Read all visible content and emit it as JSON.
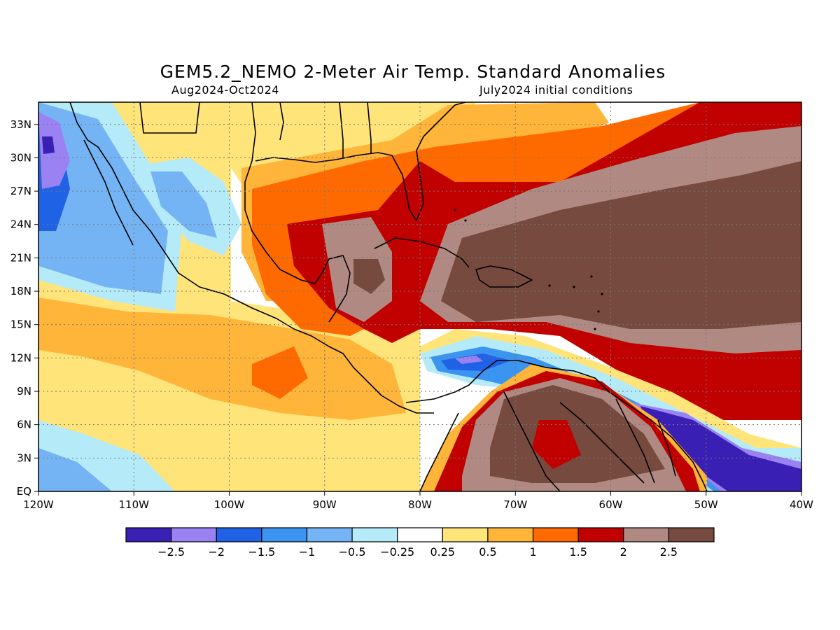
{
  "title": "GEM5.2_NEMO 2-Meter Air Temp. Standard Anomalies",
  "subtitle_left": "Aug2024-Oct2024",
  "subtitle_right": "July2024 initial conditions",
  "map": {
    "lon_range": [
      -120,
      -40
    ],
    "lat_range": [
      0,
      35
    ],
    "x_ticks": [
      "120W",
      "110W",
      "100W",
      "90W",
      "80W",
      "70W",
      "60W",
      "50W",
      "40W"
    ],
    "y_ticks": [
      "EQ",
      "3N",
      "6N",
      "9N",
      "12N",
      "15N",
      "18N",
      "21N",
      "24N",
      "27N",
      "30N",
      "33N"
    ],
    "grid": "dotted"
  },
  "colorbar": {
    "colors": [
      "#3a1fb5",
      "#9a82f2",
      "#1f62e6",
      "#3a94f0",
      "#74b4f4",
      "#b5ebf8",
      "#ffffff",
      "#ffe47a",
      "#ffb43a",
      "#ff6a00",
      "#c10000",
      "#b08a82",
      "#764a3e"
    ],
    "labels": [
      "-2.5",
      "-2",
      "-1.5",
      "-1",
      "-0.5",
      "-0.25",
      "0.25",
      "0.5",
      "1",
      "1.5",
      "2",
      "2.5"
    ]
  },
  "colors": {
    "cat_m_neg25": "#3a1fb5",
    "cat_m_neg2": "#9a82f2",
    "cat_m_neg15": "#1f62e6",
    "cat_m_neg1": "#3a94f0",
    "cat_m_neg05": "#74b4f4",
    "cat_m_neg025": "#b5ebf8",
    "cat_neutral": "#ffffff",
    "cat_025": "#ffe47a",
    "cat_05": "#ffb43a",
    "cat_1": "#ff6a00",
    "cat_15": "#c10000",
    "cat_2": "#b08a82",
    "cat_25": "#764a3e"
  }
}
